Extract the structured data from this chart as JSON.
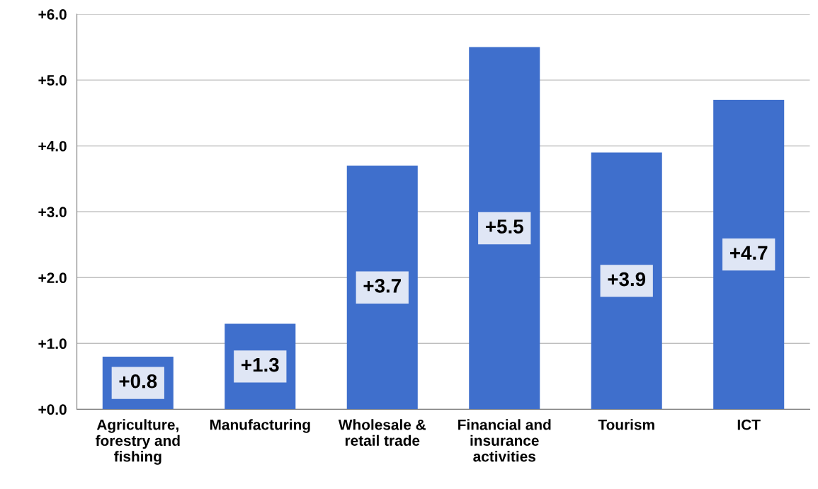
{
  "chart_data": {
    "type": "bar",
    "categories": [
      "Agriculture,\nforestry and\nfishing",
      "Manufacturing",
      "Wholesale &\nretail trade",
      "Financial and\ninsurance\nactivities",
      "Tourism",
      "ICT"
    ],
    "values": [
      0.8,
      1.3,
      3.7,
      5.5,
      3.9,
      4.7
    ],
    "color": "#3f6fcc",
    "value_labels": [
      "+0.8",
      "+1.3",
      "+3.7",
      "+5.5",
      "+3.9",
      "+4.7"
    ],
    "ylim": [
      0,
      6
    ],
    "yticks": [
      {
        "value": 0,
        "label": "+0.0"
      },
      {
        "value": 1,
        "label": "+1.0"
      },
      {
        "value": 2,
        "label": "+2.0"
      },
      {
        "value": 3,
        "label": "+3.0"
      },
      {
        "value": 4,
        "label": "+4.0"
      },
      {
        "value": 5,
        "label": "+5.0"
      },
      {
        "value": 6,
        "label": "+6.0"
      }
    ],
    "grid": "y",
    "legend": false
  }
}
